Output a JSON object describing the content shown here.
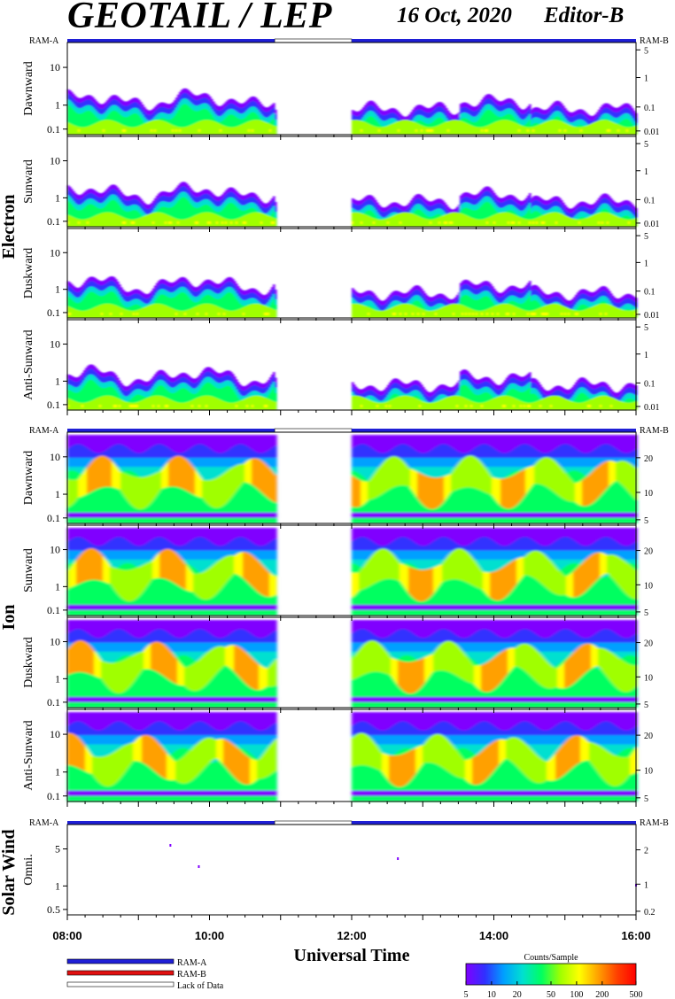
{
  "header": {
    "title": "GEOTAIL / LEP",
    "date": "16 Oct, 2020",
    "editor": "Editor-B"
  },
  "colors": {
    "ram_a": "#1f1fd6",
    "ram_b": "#e01010",
    "lack_of_data": "#ffffff",
    "colorbar": [
      "#8000ff",
      "#3030ff",
      "#00a0ff",
      "#00e0d0",
      "#00ff60",
      "#a0ff00",
      "#ffff00",
      "#ffa000",
      "#ff4000",
      "#ff0000"
    ]
  },
  "chart_data": {
    "type": "heatmap",
    "x_axis": {
      "label": "Universal Time",
      "range": [
        "08:00",
        "16:00"
      ],
      "tick_labels": [
        "08:00",
        "10:00",
        "12:00",
        "14:00",
        "16:00"
      ]
    },
    "ram_bar_labels": {
      "left": "RAM-A",
      "right": "RAM-B"
    },
    "data_gap_utc": [
      "10:55",
      "12:00"
    ],
    "groups": [
      {
        "name": "Electron",
        "panels": [
          {
            "label": "Dawnward",
            "left_ticks": [
              "10",
              "1",
              "0.1"
            ],
            "right_ticks": [
              "5",
              "1",
              "0.1",
              "0.01"
            ]
          },
          {
            "label": "Sunward",
            "left_ticks": [
              "10",
              "1",
              "0.1"
            ],
            "right_ticks": [
              "5",
              "1",
              "0.1",
              "0.01"
            ]
          },
          {
            "label": "Duskward",
            "left_ticks": [
              "10",
              "1",
              "0.1"
            ],
            "right_ticks": [
              "5",
              "1",
              "0.1",
              "0.01"
            ]
          },
          {
            "label": "Anti-Sunward",
            "left_ticks": [
              "10",
              "1",
              "0.1"
            ],
            "right_ticks": [
              "5",
              "1",
              "0.1",
              "0.01"
            ]
          }
        ]
      },
      {
        "name": "Ion",
        "panels": [
          {
            "label": "Dawnward",
            "left_ticks": [
              "10",
              "1",
              "0.1"
            ],
            "right_ticks": [
              "20",
              "10",
              "5"
            ]
          },
          {
            "label": "Sunward",
            "left_ticks": [
              "10",
              "1",
              "0.1"
            ],
            "right_ticks": [
              "20",
              "10",
              "5"
            ]
          },
          {
            "label": "Duskward",
            "left_ticks": [
              "10",
              "1",
              "0.1"
            ],
            "right_ticks": [
              "20",
              "10",
              "5"
            ]
          },
          {
            "label": "Anti-Sunward",
            "left_ticks": [
              "10",
              "1",
              "0.1"
            ],
            "right_ticks": [
              "20",
              "10",
              "5"
            ]
          }
        ]
      },
      {
        "name": "Solar Wind",
        "panels": [
          {
            "label": "Omni.",
            "left_ticks": [
              "5",
              "1",
              "0.5"
            ],
            "right_ticks": [
              "2",
              "1",
              "0.2"
            ]
          }
        ]
      }
    ],
    "legend": {
      "ram_a": "RAM-A",
      "ram_b": "RAM-B",
      "lack": "Lack of Data"
    },
    "colorbar": {
      "title": "Counts/Sample",
      "scale": "log",
      "tick_labels": [
        "5",
        "10",
        "20",
        "50",
        "100",
        "200",
        "500"
      ]
    }
  }
}
